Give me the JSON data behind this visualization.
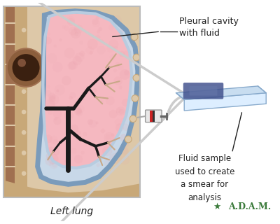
{
  "bg_color": "#ffffff",
  "title": "Left lung",
  "title_fontsize": 10,
  "label1": "Pleural cavity\nwith fluid",
  "label2": "Fluid sample\nused to create\na smear for\nanalysis",
  "adam_text": "A.D.A.M.",
  "lung_pink": "#f5b8c0",
  "lung_texture": "#e8a0aa",
  "pleural_blue_outer": "#7a9bbb",
  "pleural_blue_inner": "#b8cce0",
  "pleural_fill": "#c8d8e8",
  "body_tan_light": "#ddc8a8",
  "body_tan": "#c8a878",
  "body_dark": "#a07050",
  "chest_wall": "#b89870",
  "bronchi_color": "#1a1a1a",
  "bronchi_beige": "#c8a888",
  "slide_top": "#c8ddf0",
  "slide_light": "#ddeeff",
  "slide_edge": "#88aacc",
  "slide_stain": "#3a4a88",
  "stain_mid": "#6677aa",
  "vessel_brown": "#8B5E3C",
  "vessel_dark": "#3a2010",
  "arrow_gray": "#888888",
  "text_color": "#222222",
  "adam_green": "#3a7a3a",
  "box_edge": "#bbbbbb"
}
